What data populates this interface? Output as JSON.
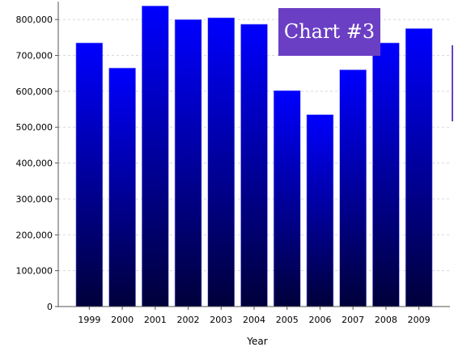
{
  "chart_data": {
    "type": "bar",
    "categories": [
      "1999",
      "2000",
      "2001",
      "2002",
      "2003",
      "2004",
      "2005",
      "2006",
      "2007",
      "2008",
      "2009"
    ],
    "values": [
      735000,
      665000,
      838000,
      800000,
      805000,
      787000,
      602000,
      535000,
      660000,
      735000,
      775000
    ],
    "xlabel": "Year",
    "ylabel": "",
    "ylim": [
      0,
      850000
    ],
    "yticks": [
      0,
      100000,
      200000,
      300000,
      400000,
      500000,
      600000,
      700000,
      800000
    ],
    "ytick_labels": [
      "0",
      "100,000",
      "200,000",
      "300,000",
      "400,000",
      "500,000",
      "600,000",
      "700,000",
      "800,000"
    ],
    "grid": "horizontal dashed",
    "bar_gradient_top": "#0000ff",
    "bar_gradient_bottom": "#00003a"
  },
  "badge": {
    "label": "Chart #3",
    "color": "#6a3fc4"
  }
}
